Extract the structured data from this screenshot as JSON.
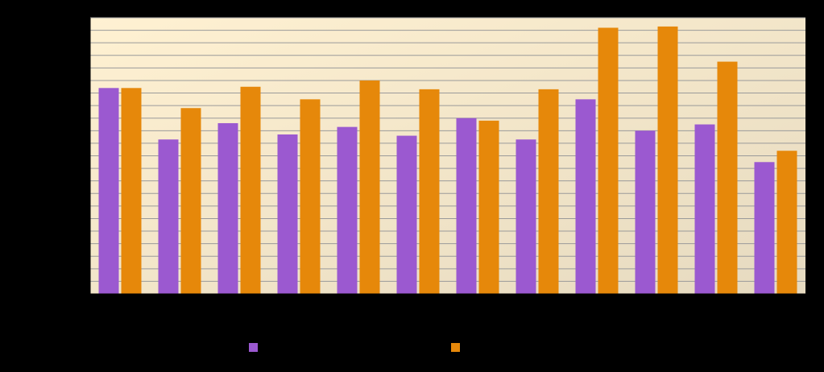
{
  "chart_data": {
    "type": "bar",
    "categories": [
      "",
      "",
      "",
      "",
      "",
      "",
      "",
      "",
      "",
      "",
      "",
      ""
    ],
    "ylim": [
      0,
      22
    ],
    "grid": true,
    "legend_position": "bottom",
    "series": [
      {
        "values": [
          16.4,
          12.3,
          13.6,
          12.7,
          13.3,
          12.6,
          14.0,
          12.3,
          15.5,
          13.0,
          13.5,
          10.5
        ]
      },
      {
        "values": [
          16.4,
          14.8,
          16.5,
          15.5,
          17.0,
          16.3,
          13.8,
          16.3,
          21.2,
          21.3,
          18.5,
          11.4
        ]
      }
    ],
    "colors": {
      "series0": "#9b59d0",
      "series1": "#e6880a",
      "axis": "#000000",
      "grid": "#9a9a9a"
    }
  },
  "legend": {
    "items": [
      {
        "label": ""
      },
      {
        "label": ""
      }
    ]
  }
}
